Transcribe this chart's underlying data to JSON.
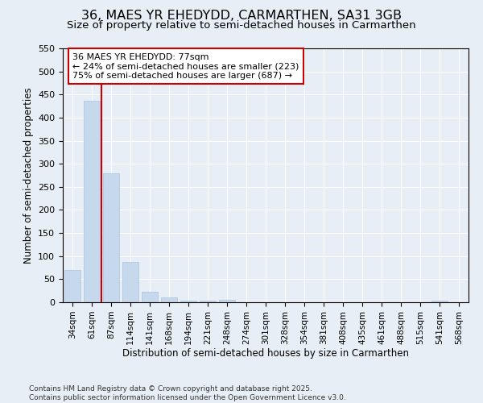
{
  "title": "36, MAES YR EHEDYDD, CARMARTHEN, SA31 3GB",
  "subtitle": "Size of property relative to semi-detached houses in Carmarthen",
  "xlabel": "Distribution of semi-detached houses by size in Carmarthen",
  "ylabel": "Number of semi-detached properties",
  "categories": [
    "34sqm",
    "61sqm",
    "87sqm",
    "114sqm",
    "141sqm",
    "168sqm",
    "194sqm",
    "221sqm",
    "248sqm",
    "274sqm",
    "301sqm",
    "328sqm",
    "354sqm",
    "381sqm",
    "408sqm",
    "435sqm",
    "461sqm",
    "488sqm",
    "515sqm",
    "541sqm",
    "568sqm"
  ],
  "values": [
    70,
    437,
    280,
    88,
    22,
    10,
    4,
    4,
    6,
    0,
    0,
    0,
    0,
    0,
    0,
    0,
    0,
    0,
    0,
    4,
    0
  ],
  "bar_color": "#c5d8ec",
  "bar_edge_color": "#a8c4e0",
  "vline_color": "#cc0000",
  "vline_x": 1.5,
  "ylim": [
    0,
    550
  ],
  "yticks": [
    0,
    50,
    100,
    150,
    200,
    250,
    300,
    350,
    400,
    450,
    500,
    550
  ],
  "annotation_text": "36 MAES YR EHEDYDD: 77sqm\n← 24% of semi-detached houses are smaller (223)\n75% of semi-detached houses are larger (687) →",
  "bg_color": "#e8eef5",
  "grid_color": "#ffffff",
  "footnote": "Contains HM Land Registry data © Crown copyright and database right 2025.\nContains public sector information licensed under the Open Government Licence v3.0."
}
